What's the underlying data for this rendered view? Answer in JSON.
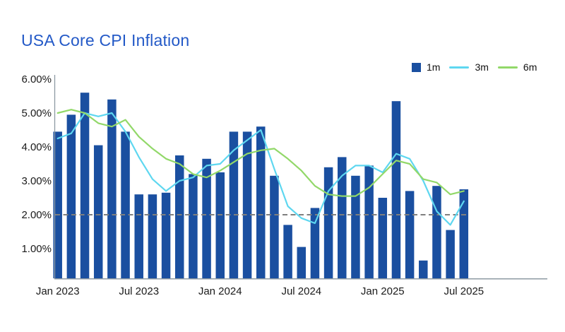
{
  "page": {
    "background": "#ffffff"
  },
  "header": {
    "title": "USA Core CPI Inflation",
    "title_color": "#2359C7"
  },
  "legend": {
    "position": "top-right",
    "items": [
      {
        "label": "1m",
        "swatch": "square",
        "color": "#1A4FA0"
      },
      {
        "label": "3m",
        "swatch": "line",
        "color": "#5ED7F0"
      },
      {
        "label": "6m",
        "swatch": "line",
        "color": "#92D869"
      }
    ]
  },
  "chart_data": {
    "type": "bar",
    "title": "USA Core CPI Inflation",
    "categories": [
      "Jan 2023",
      "Feb 2023",
      "Mar 2023",
      "Apr 2023",
      "May 2023",
      "Jun 2023",
      "Jul 2023",
      "Aug 2023",
      "Sep 2023",
      "Oct 2023",
      "Nov 2023",
      "Dec 2023",
      "Jan 2024",
      "Feb 2024",
      "Mar 2024",
      "Apr 2024",
      "May 2024",
      "Jun 2024",
      "Jul 2024",
      "Aug 2024",
      "Sep 2024",
      "Oct 2024",
      "Nov 2024",
      "Dec 2024",
      "Jan 2025",
      "Feb 2025",
      "Mar 2025",
      "Apr 2025",
      "May 2025",
      "Jun 2025",
      "Jul 2025"
    ],
    "series": [
      {
        "name": "1m",
        "type": "bar",
        "color": "#1A4FA0",
        "values": [
          4.45,
          4.95,
          5.6,
          4.05,
          5.4,
          4.45,
          2.6,
          2.6,
          2.65,
          3.75,
          3.2,
          3.65,
          3.25,
          4.45,
          4.45,
          4.6,
          3.15,
          1.7,
          1.05,
          2.2,
          3.4,
          3.7,
          3.15,
          3.45,
          2.5,
          5.35,
          2.7,
          0.65,
          2.85,
          1.55,
          2.75
        ]
      },
      {
        "name": "3m",
        "type": "line",
        "color": "#5ED7F0",
        "values": [
          4.25,
          4.4,
          5.0,
          4.9,
          5.0,
          4.45,
          3.7,
          3.05,
          2.7,
          3.0,
          3.1,
          3.45,
          3.5,
          3.9,
          4.2,
          4.5,
          3.35,
          2.25,
          1.9,
          1.75,
          2.7,
          3.15,
          3.45,
          3.45,
          3.25,
          3.8,
          3.65,
          3.0,
          2.1,
          1.7,
          2.4
        ]
      },
      {
        "name": "6m",
        "type": "line",
        "color": "#92D869",
        "values": [
          5.0,
          5.1,
          5.0,
          4.7,
          4.6,
          4.8,
          4.3,
          3.95,
          3.65,
          3.5,
          3.2,
          3.1,
          3.3,
          3.55,
          3.8,
          3.9,
          3.95,
          3.65,
          3.3,
          2.85,
          2.6,
          2.55,
          2.55,
          2.8,
          3.2,
          3.6,
          3.5,
          3.05,
          2.95,
          2.6,
          2.7
        ]
      }
    ],
    "y_axis": {
      "min": 0,
      "max": 6,
      "unit": "%",
      "tick_values": [
        1,
        2,
        3,
        4,
        5,
        6
      ],
      "tick_labels": [
        "1.00%",
        "2.00%",
        "3.00%",
        "4.00%",
        "5.00%",
        "6.00%"
      ]
    },
    "x_axis": {
      "tick_labels": [
        "Jan 2023",
        "Jul 2023",
        "Jan 2024",
        "Jul 2024",
        "Jan 2025",
        "Jul 2025"
      ],
      "tick_indices": [
        0,
        6,
        12,
        18,
        24,
        30
      ]
    },
    "reference_line": {
      "value": 2.0,
      "style": "dashed",
      "color": "#7F7F7F"
    },
    "grid": false,
    "legend_position": "top-right",
    "axis_color": "#8D9AA3",
    "label_color": "#1a1a1a"
  }
}
